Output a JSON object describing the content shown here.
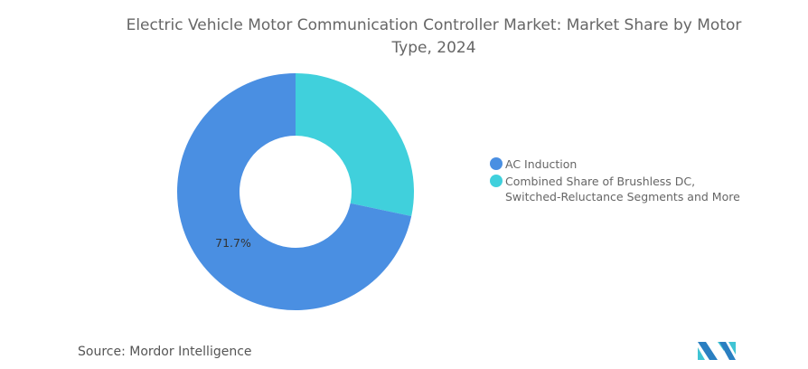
{
  "title": "Electric Vehicle Motor Communication Controller Market: Market Share by Motor Type, 2024",
  "source": "Source:  Mordor Intelligence",
  "chart_data": {
    "type": "pie",
    "subtype": "donut",
    "title": "Electric Vehicle Motor Communication Controller Market: Market Share by Motor Type, 2024",
    "slices": [
      {
        "label": "AC Induction",
        "value": 71.7,
        "color": "#4a8fe2",
        "data_label": "71.7%"
      },
      {
        "label": "Combined Share of Brushless DC, Switched-Reluctance Segments and More",
        "value": 28.3,
        "color": "#40d0dc",
        "data_label": ""
      }
    ],
    "legend_position": "right",
    "legend_lines": [
      [
        "AC Induction"
      ],
      [
        "Combined Share of Brushless DC,",
        "Switched-Reluctance Segments and More"
      ]
    ]
  }
}
